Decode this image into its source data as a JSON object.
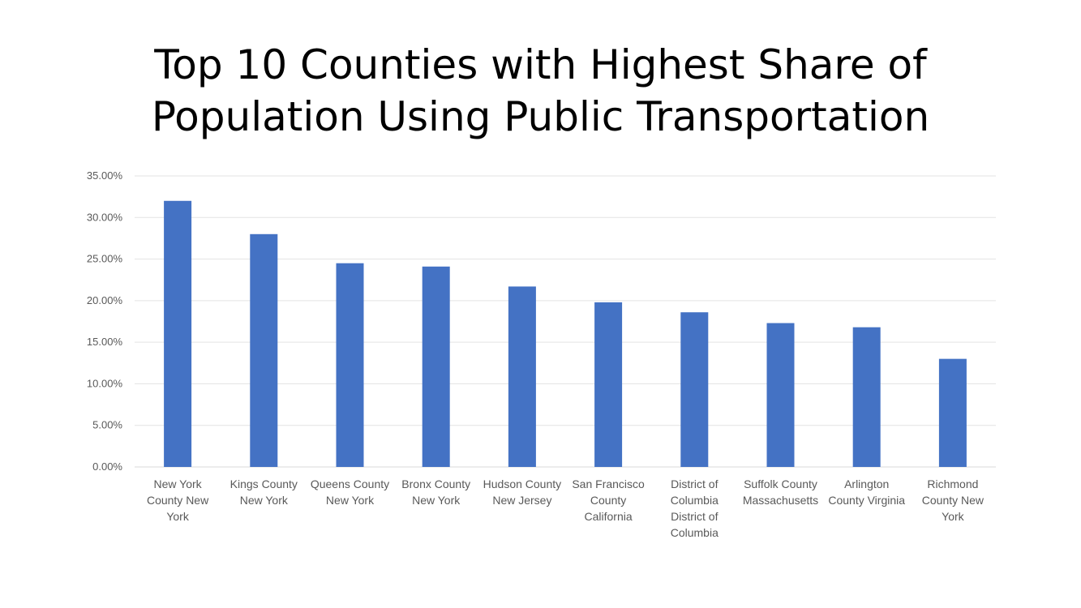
{
  "chart_data": {
    "type": "bar",
    "title_lines": [
      "Top 10 Counties with Highest Share of",
      "Population Using Public Transportation"
    ],
    "xlabel": "",
    "ylabel": "",
    "ylim": [
      0,
      35
    ],
    "y_ticks": [
      0,
      5,
      10,
      15,
      20,
      25,
      30,
      35
    ],
    "y_tick_labels": [
      "0.00%",
      "5.00%",
      "10.00%",
      "15.00%",
      "20.00%",
      "25.00%",
      "30.00%",
      "35.00%"
    ],
    "grid": true,
    "legend": "none",
    "bar_color": "#4472c4",
    "categories": [
      [
        "New York",
        "County New",
        "York"
      ],
      [
        "Kings County",
        "New York"
      ],
      [
        "Queens County",
        "New York"
      ],
      [
        "Bronx County",
        "New York"
      ],
      [
        "Hudson County",
        "New Jersey"
      ],
      [
        "San Francisco",
        "County",
        "California"
      ],
      [
        "District of",
        "Columbia",
        "District of",
        "Columbia"
      ],
      [
        "Suffolk County",
        "Massachusetts"
      ],
      [
        "Arlington",
        "County Virginia"
      ],
      [
        "Richmond",
        "County New",
        "York"
      ]
    ],
    "values": [
      32.0,
      28.0,
      24.5,
      24.1,
      21.7,
      19.8,
      18.6,
      17.3,
      16.8,
      13.0
    ]
  }
}
